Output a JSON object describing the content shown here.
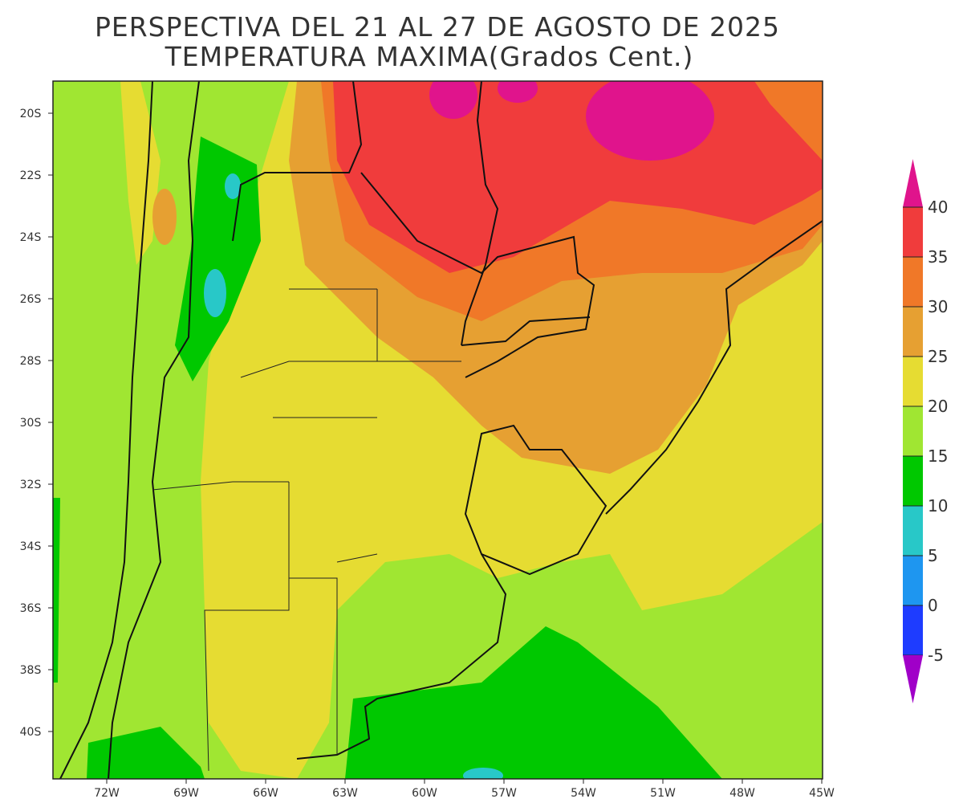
{
  "title": {
    "line1": "PERSPECTIVA DEL 21 AL 27 DE AGOSTO DE 2025",
    "line2": "TEMPERATURA MAXIMA(Grados Cent.)"
  },
  "latitude_labels": [
    "20S",
    "22S",
    "24S",
    "26S",
    "28S",
    "30S",
    "32S",
    "34S",
    "36S",
    "38S",
    "40S"
  ],
  "longitude_labels": [
    "72W",
    "69W",
    "66W",
    "63W",
    "60W",
    "57W",
    "54W",
    "51W",
    "48W",
    "45W"
  ],
  "colorbar": {
    "levels": [
      40,
      35,
      30,
      25,
      20,
      15,
      10,
      5,
      0,
      -5
    ],
    "colors": [
      "#e0148c",
      "#f03c3c",
      "#f07828",
      "#e6a032",
      "#e6dc32",
      "#a0e632",
      "#00c800",
      "#28c8c8",
      "#1e96f0",
      "#1e3cff",
      "#a000c8"
    ]
  }
}
